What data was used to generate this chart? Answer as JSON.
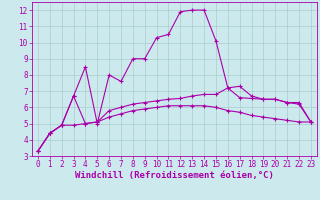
{
  "xlabel": "Windchill (Refroidissement éolien,°C)",
  "background_color": "#cce9ed",
  "grid_color": "#aacccc",
  "line_color": "#aa00aa",
  "xlim": [
    -0.5,
    23.5
  ],
  "ylim": [
    3,
    12.5
  ],
  "xticks": [
    0,
    1,
    2,
    3,
    4,
    5,
    6,
    7,
    8,
    9,
    10,
    11,
    12,
    13,
    14,
    15,
    16,
    17,
    18,
    19,
    20,
    21,
    22,
    23
  ],
  "yticks": [
    3,
    4,
    5,
    6,
    7,
    8,
    9,
    10,
    11,
    12
  ],
  "line1_x": [
    0,
    1,
    2,
    3,
    4,
    5,
    6,
    7,
    8,
    9,
    10,
    11,
    12,
    13,
    14,
    15,
    16,
    17,
    18,
    19,
    20,
    21,
    22,
    23
  ],
  "line1_y": [
    3.3,
    4.4,
    4.9,
    6.7,
    8.5,
    5.0,
    8.0,
    7.6,
    9.0,
    9.0,
    10.3,
    10.5,
    11.9,
    12.0,
    12.0,
    10.1,
    7.2,
    7.3,
    6.7,
    6.5,
    6.5,
    6.3,
    6.2,
    5.1
  ],
  "line2_x": [
    0,
    1,
    2,
    3,
    4,
    5,
    6,
    7,
    8,
    9,
    10,
    11,
    12,
    13,
    14,
    15,
    16,
    17,
    18,
    19,
    20,
    21,
    22,
    23
  ],
  "line2_y": [
    3.3,
    4.4,
    4.9,
    6.7,
    5.0,
    5.1,
    5.8,
    6.0,
    6.2,
    6.3,
    6.4,
    6.5,
    6.55,
    6.7,
    6.8,
    6.8,
    7.2,
    6.6,
    6.55,
    6.5,
    6.5,
    6.3,
    6.3,
    5.1
  ],
  "line3_x": [
    0,
    1,
    2,
    3,
    4,
    5,
    6,
    7,
    8,
    9,
    10,
    11,
    12,
    13,
    14,
    15,
    16,
    17,
    18,
    19,
    20,
    21,
    22,
    23
  ],
  "line3_y": [
    3.3,
    4.4,
    4.9,
    4.9,
    5.0,
    5.1,
    5.4,
    5.6,
    5.8,
    5.9,
    6.0,
    6.1,
    6.1,
    6.1,
    6.1,
    6.0,
    5.8,
    5.7,
    5.5,
    5.4,
    5.3,
    5.2,
    5.1,
    5.1
  ],
  "tick_fontsize": 5.5,
  "xlabel_fontsize": 6.5
}
